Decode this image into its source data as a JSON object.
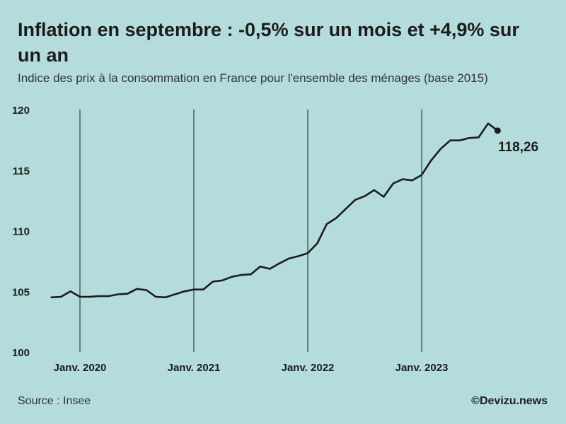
{
  "header": {
    "title": "Inflation en septembre : -0,5% sur un mois et +4,9% sur un an",
    "subtitle": "Indice des prix à la consommation en France pour l'ensemble des ménages (base 2015)"
  },
  "footer": {
    "source": "Source : Insee",
    "credit": "©Devizu.news"
  },
  "colors": {
    "background": "#b5dcdc",
    "line": "#1c1c1c"
  },
  "chart_data": {
    "type": "line",
    "title": "Inflation en septembre : -0,5% sur un mois et +4,9% sur un an",
    "subtitle": "Indice des prix à la consommation en France pour l'ensemble des ménages (base 2015)",
    "xlabel": "",
    "ylabel": "",
    "ylim": [
      100,
      120
    ],
    "y_ticks": [
      100,
      105,
      110,
      115,
      120
    ],
    "x_ticks": [
      "Janv. 2020",
      "Janv. 2021",
      "Janv. 2022",
      "Janv. 2023"
    ],
    "x_tick_months": [
      "2020-01",
      "2021-01",
      "2022-01",
      "2023-01"
    ],
    "vertical_gridlines": true,
    "end_label": "118,26",
    "series": [
      {
        "x": [
          "2019-10",
          "2019-11",
          "2019-12",
          "2020-01",
          "2020-02",
          "2020-03",
          "2020-04",
          "2020-05",
          "2020-06",
          "2020-07",
          "2020-08",
          "2020-09",
          "2020-10",
          "2020-11",
          "2020-12",
          "2021-01",
          "2021-02",
          "2021-03",
          "2021-04",
          "2021-05",
          "2021-06",
          "2021-07",
          "2021-08",
          "2021-09",
          "2021-10",
          "2021-11",
          "2021-12",
          "2022-01",
          "2022-02",
          "2022-03",
          "2022-04",
          "2022-05",
          "2022-06",
          "2022-07",
          "2022-08",
          "2022-09",
          "2022-10",
          "2022-11",
          "2022-12",
          "2023-01",
          "2023-02",
          "2023-03",
          "2023-04",
          "2023-05",
          "2023-06",
          "2023-07",
          "2023-08",
          "2023-09"
        ],
        "values": [
          104.5,
          104.55,
          105.0,
          104.55,
          104.55,
          104.6,
          104.6,
          104.75,
          104.8,
          105.2,
          105.1,
          104.55,
          104.5,
          104.75,
          105.0,
          105.15,
          105.15,
          105.8,
          105.9,
          106.2,
          106.35,
          106.4,
          107.05,
          106.85,
          107.3,
          107.7,
          107.9,
          108.15,
          108.95,
          110.55,
          111.05,
          111.8,
          112.55,
          112.85,
          113.35,
          112.8,
          113.9,
          114.25,
          114.15,
          114.6,
          115.8,
          116.75,
          117.45,
          117.45,
          117.65,
          117.7,
          118.85,
          118.26
        ]
      }
    ]
  }
}
